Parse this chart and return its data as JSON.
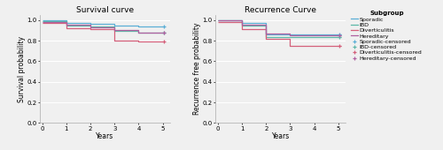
{
  "survival_title": "Survival curve",
  "recurrence_title": "Recurrence Curve",
  "xlabel": "Years",
  "ylabel_left": "Survival probability",
  "ylabel_right": "Recurrence free probability",
  "ylim": [
    0.0,
    1.05
  ],
  "yticks": [
    0.0,
    0.2,
    0.4,
    0.6,
    0.8,
    1.0
  ],
  "xlim": [
    -0.1,
    5.3
  ],
  "xticks": [
    0,
    1,
    2,
    3,
    4,
    5
  ],
  "colors": {
    "Sporadic": "#5bafd6",
    "IBD": "#5db8a8",
    "Diverticulitis": "#d4607a",
    "Hereditary": "#b060a0"
  },
  "survival_curves": {
    "Sporadic": {
      "x": [
        0,
        1,
        1,
        2,
        2,
        3,
        3,
        4,
        4,
        5.1
      ],
      "y": [
        1.0,
        1.0,
        0.97,
        0.97,
        0.965,
        0.965,
        0.945,
        0.945,
        0.935,
        0.935
      ]
    },
    "IBD": {
      "x": [
        0,
        1,
        1,
        2,
        2,
        3,
        3,
        4,
        4,
        5.1
      ],
      "y": [
        0.99,
        0.99,
        0.945,
        0.945,
        0.935,
        0.935,
        0.895,
        0.895,
        0.875,
        0.875
      ]
    },
    "Diverticulitis": {
      "x": [
        0,
        1,
        1,
        2,
        2,
        3,
        3,
        4,
        4,
        5.1
      ],
      "y": [
        0.975,
        0.975,
        0.925,
        0.925,
        0.91,
        0.91,
        0.8,
        0.8,
        0.79,
        0.79
      ]
    },
    "Hereditary": {
      "x": [
        0,
        1,
        1,
        2,
        2,
        3,
        3,
        4,
        4,
        5.1
      ],
      "y": [
        0.985,
        0.985,
        0.955,
        0.955,
        0.93,
        0.93,
        0.905,
        0.905,
        0.875,
        0.875
      ]
    }
  },
  "survival_censored": {
    "Sporadic": {
      "x": [
        5.05
      ],
      "y": [
        0.935
      ]
    },
    "IBD": {
      "x": [
        5.05
      ],
      "y": [
        0.875
      ]
    },
    "Diverticulitis": {
      "x": [
        5.05
      ],
      "y": [
        0.79
      ]
    },
    "Hereditary": {
      "x": [
        5.05
      ],
      "y": [
        0.875
      ]
    }
  },
  "recurrence_curves": {
    "Sporadic": {
      "x": [
        0,
        1,
        1,
        2,
        2,
        3,
        3,
        4,
        4,
        5.1
      ],
      "y": [
        1.0,
        1.0,
        0.97,
        0.97,
        0.865,
        0.865,
        0.865,
        0.865,
        0.865,
        0.865
      ]
    },
    "IBD": {
      "x": [
        0,
        1,
        1,
        2,
        2,
        3,
        3,
        4,
        4,
        5.1
      ],
      "y": [
        1.0,
        1.0,
        0.945,
        0.945,
        0.835,
        0.835,
        0.835,
        0.835,
        0.835,
        0.835
      ]
    },
    "Diverticulitis": {
      "x": [
        0,
        1,
        1,
        2,
        2,
        3,
        3,
        4,
        4,
        5.1
      ],
      "y": [
        0.985,
        0.985,
        0.91,
        0.91,
        0.815,
        0.815,
        0.75,
        0.75,
        0.75,
        0.75
      ]
    },
    "Hereditary": {
      "x": [
        0,
        1,
        1,
        2,
        2,
        3,
        3,
        4,
        4,
        5.1
      ],
      "y": [
        0.995,
        0.995,
        0.955,
        0.955,
        0.87,
        0.87,
        0.855,
        0.855,
        0.855,
        0.855
      ]
    }
  },
  "recurrence_censored": {
    "Sporadic": {
      "x": [
        5.05
      ],
      "y": [
        0.865
      ]
    },
    "IBD": {
      "x": [
        5.05
      ],
      "y": [
        0.835
      ]
    },
    "Diverticulitis": {
      "x": [
        5.05
      ],
      "y": [
        0.75
      ]
    },
    "Hereditary": {
      "x": [
        5.05
      ],
      "y": [
        0.855
      ]
    }
  },
  "subgroups": [
    "Sporadic",
    "IBD",
    "Diverticulitis",
    "Hereditary"
  ],
  "bg_color": "#f0f0f0",
  "plot_bg": "#f0f0f0",
  "grid_color": "#ffffff",
  "title_fontsize": 6.5,
  "label_fontsize": 5.5,
  "tick_fontsize": 5,
  "legend_fontsize": 4.5,
  "legend_title_fontsize": 5
}
